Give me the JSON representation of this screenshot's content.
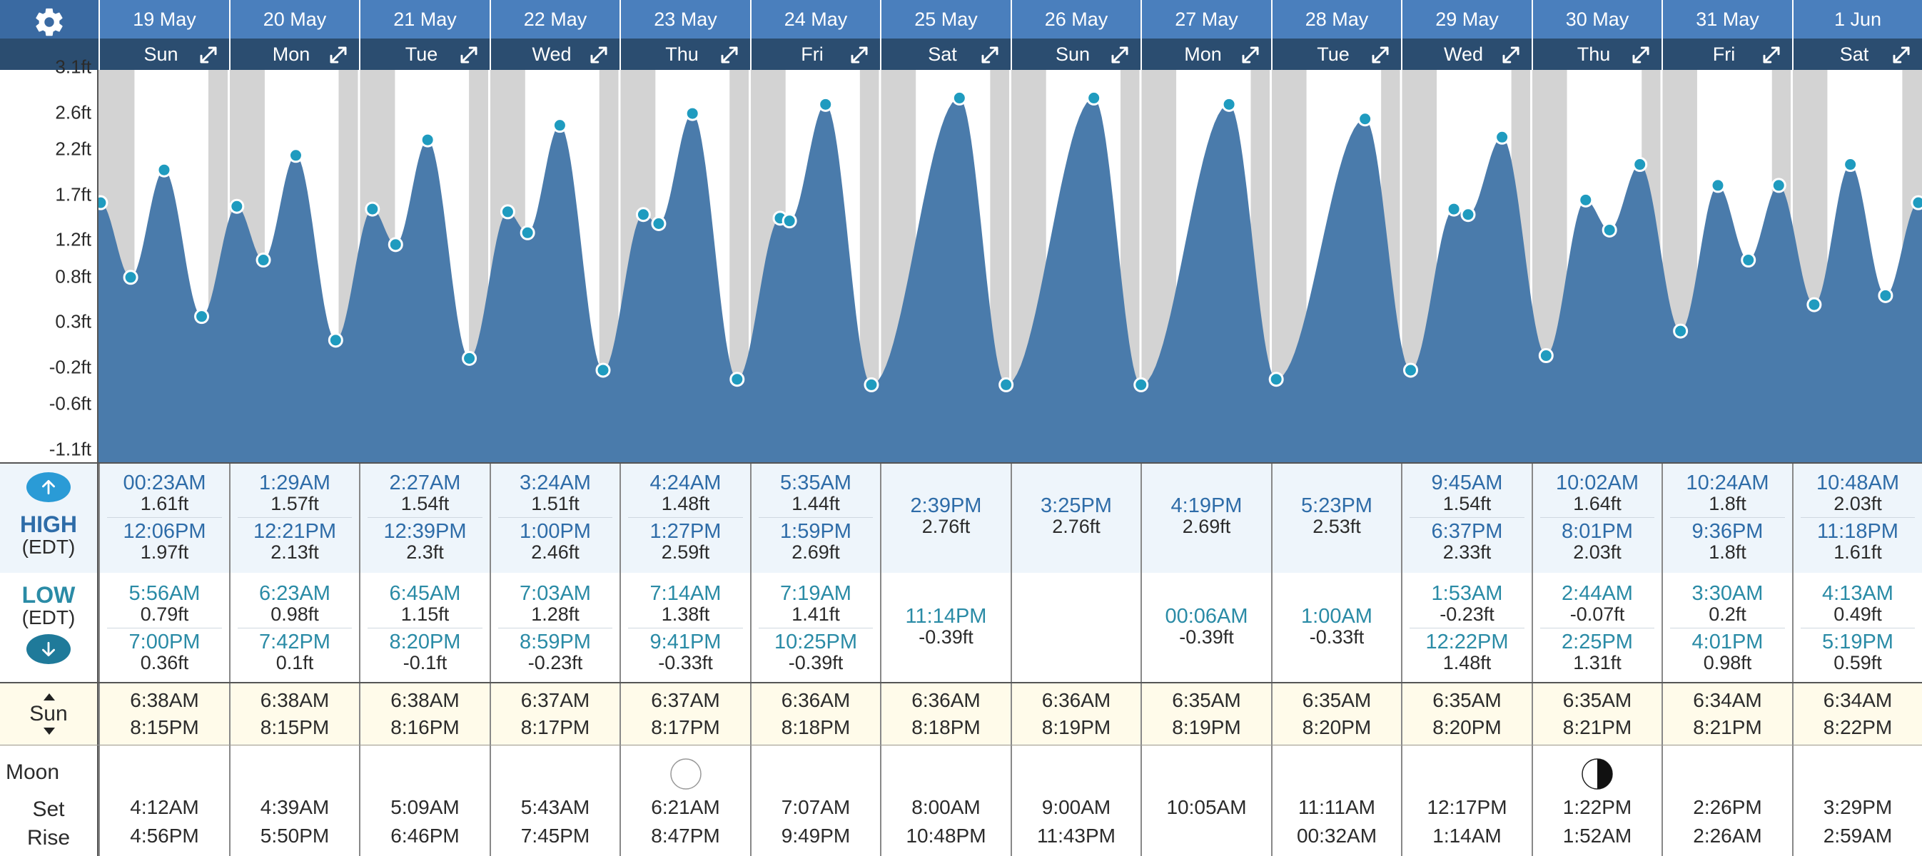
{
  "header": {
    "settings_icon": "gear-icon",
    "expand_icon": "expand-icon",
    "days": [
      {
        "date": "19 May",
        "dow": "Sun"
      },
      {
        "date": "20 May",
        "dow": "Mon"
      },
      {
        "date": "21 May",
        "dow": "Tue"
      },
      {
        "date": "22 May",
        "dow": "Wed"
      },
      {
        "date": "23 May",
        "dow": "Thu"
      },
      {
        "date": "24 May",
        "dow": "Fri"
      },
      {
        "date": "25 May",
        "dow": "Sat"
      },
      {
        "date": "26 May",
        "dow": "Sun"
      },
      {
        "date": "27 May",
        "dow": "Mon"
      },
      {
        "date": "28 May",
        "dow": "Tue"
      },
      {
        "date": "29 May",
        "dow": "Wed"
      },
      {
        "date": "30 May",
        "dow": "Thu"
      },
      {
        "date": "31 May",
        "dow": "Fri"
      },
      {
        "date": "1 Jun",
        "dow": "Sat"
      }
    ]
  },
  "chart_data": {
    "type": "area",
    "title": "",
    "xlabel": "",
    "ylabel": "",
    "y_tick_labels": [
      "3.1ft",
      "2.6ft",
      "2.2ft",
      "1.7ft",
      "1.2ft",
      "0.8ft",
      "0.3ft",
      "-0.2ft",
      "-0.6ft",
      "-1.1ft"
    ],
    "ylim": [
      -1.1,
      3.1
    ],
    "x_unit": "days since 19 May 00:00",
    "x_range": [
      0,
      14
    ],
    "series": [
      {
        "values_note": "tide extremes",
        "points": [
          [
            0.016,
            1.61
          ],
          [
            0.247,
            0.79
          ],
          [
            0.504,
            1.97
          ],
          [
            0.792,
            0.36
          ],
          [
            1.062,
            1.57
          ],
          [
            1.266,
            0.98
          ],
          [
            1.515,
            2.13
          ],
          [
            1.821,
            0.1
          ],
          [
            2.103,
            1.54
          ],
          [
            2.281,
            1.15
          ],
          [
            2.527,
            2.3
          ],
          [
            2.847,
            -0.1
          ],
          [
            3.142,
            1.51
          ],
          [
            3.294,
            1.28
          ],
          [
            3.542,
            2.46
          ],
          [
            3.874,
            -0.23
          ],
          [
            4.183,
            1.48
          ],
          [
            4.301,
            1.38
          ],
          [
            4.56,
            2.59
          ],
          [
            4.903,
            -0.33
          ],
          [
            5.233,
            1.44
          ],
          [
            5.305,
            1.41
          ],
          [
            5.582,
            2.69
          ],
          [
            5.934,
            -0.39
          ],
          [
            6.61,
            2.76
          ],
          [
            6.968,
            -0.39
          ],
          [
            7.642,
            2.76
          ],
          [
            8.004,
            -0.39
          ],
          [
            8.68,
            2.69
          ],
          [
            9.042,
            -0.33
          ],
          [
            9.724,
            2.53
          ],
          [
            10.074,
            -0.23
          ],
          [
            10.406,
            1.54
          ],
          [
            10.515,
            1.48
          ],
          [
            10.776,
            2.33
          ],
          [
            11.114,
            -0.07
          ],
          [
            11.418,
            1.64
          ],
          [
            11.601,
            1.31
          ],
          [
            11.834,
            2.03
          ],
          [
            12.146,
            0.2
          ],
          [
            12.433,
            1.8
          ],
          [
            12.667,
            0.98
          ],
          [
            12.9,
            1.8
          ],
          [
            13.172,
            0.49
          ],
          [
            13.45,
            2.03
          ],
          [
            13.72,
            0.59
          ],
          [
            13.972,
            1.61
          ]
        ]
      }
    ],
    "colors": {
      "fill": "#4a7bab",
      "marker": "#1f9bbf",
      "night": "#d3d3d3"
    },
    "grid": false
  },
  "table": {
    "high_label": "HIGH",
    "high_tz": "(EDT)",
    "low_label": "LOW",
    "low_tz": "(EDT)",
    "sun_label": "Sun",
    "moon_label": "Moon",
    "set_label": "Set",
    "rise_label": "Rise",
    "high": [
      [
        {
          "t": "00:23AM",
          "h": "1.61ft"
        },
        {
          "t": "12:06PM",
          "h": "1.97ft"
        }
      ],
      [
        {
          "t": "1:29AM",
          "h": "1.57ft"
        },
        {
          "t": "12:21PM",
          "h": "2.13ft"
        }
      ],
      [
        {
          "t": "2:27AM",
          "h": "1.54ft"
        },
        {
          "t": "12:39PM",
          "h": "2.3ft"
        }
      ],
      [
        {
          "t": "3:24AM",
          "h": "1.51ft"
        },
        {
          "t": "1:00PM",
          "h": "2.46ft"
        }
      ],
      [
        {
          "t": "4:24AM",
          "h": "1.48ft"
        },
        {
          "t": "1:27PM",
          "h": "2.59ft"
        }
      ],
      [
        {
          "t": "5:35AM",
          "h": "1.44ft"
        },
        {
          "t": "1:59PM",
          "h": "2.69ft"
        }
      ],
      [
        {
          "t": "2:39PM",
          "h": "2.76ft"
        }
      ],
      [
        {
          "t": "3:25PM",
          "h": "2.76ft"
        }
      ],
      [
        {
          "t": "4:19PM",
          "h": "2.69ft"
        }
      ],
      [
        {
          "t": "5:23PM",
          "h": "2.53ft"
        }
      ],
      [
        {
          "t": "9:45AM",
          "h": "1.54ft"
        },
        {
          "t": "6:37PM",
          "h": "2.33ft"
        }
      ],
      [
        {
          "t": "10:02AM",
          "h": "1.64ft"
        },
        {
          "t": "8:01PM",
          "h": "2.03ft"
        }
      ],
      [
        {
          "t": "10:24AM",
          "h": "1.8ft"
        },
        {
          "t": "9:36PM",
          "h": "1.8ft"
        }
      ],
      [
        {
          "t": "10:48AM",
          "h": "2.03ft"
        },
        {
          "t": "11:18PM",
          "h": "1.61ft"
        }
      ]
    ],
    "low": [
      [
        {
          "t": "5:56AM",
          "h": "0.79ft"
        },
        {
          "t": "7:00PM",
          "h": "0.36ft"
        }
      ],
      [
        {
          "t": "6:23AM",
          "h": "0.98ft"
        },
        {
          "t": "7:42PM",
          "h": "0.1ft"
        }
      ],
      [
        {
          "t": "6:45AM",
          "h": "1.15ft"
        },
        {
          "t": "8:20PM",
          "h": "-0.1ft"
        }
      ],
      [
        {
          "t": "7:03AM",
          "h": "1.28ft"
        },
        {
          "t": "8:59PM",
          "h": "-0.23ft"
        }
      ],
      [
        {
          "t": "7:14AM",
          "h": "1.38ft"
        },
        {
          "t": "9:41PM",
          "h": "-0.33ft"
        }
      ],
      [
        {
          "t": "7:19AM",
          "h": "1.41ft"
        },
        {
          "t": "10:25PM",
          "h": "-0.39ft"
        }
      ],
      [
        {
          "t": "11:14PM",
          "h": "-0.39ft"
        }
      ],
      [],
      [
        {
          "t": "00:06AM",
          "h": "-0.39ft"
        }
      ],
      [
        {
          "t": "1:00AM",
          "h": "-0.33ft"
        }
      ],
      [
        {
          "t": "1:53AM",
          "h": "-0.23ft"
        },
        {
          "t": "12:22PM",
          "h": "1.48ft"
        }
      ],
      [
        {
          "t": "2:44AM",
          "h": "-0.07ft"
        },
        {
          "t": "2:25PM",
          "h": "1.31ft"
        }
      ],
      [
        {
          "t": "3:30AM",
          "h": "0.2ft"
        },
        {
          "t": "4:01PM",
          "h": "0.98ft"
        }
      ],
      [
        {
          "t": "4:13AM",
          "h": "0.49ft"
        },
        {
          "t": "5:19PM",
          "h": "0.59ft"
        }
      ]
    ],
    "sun": [
      {
        "rise": "6:38AM",
        "set": "8:15PM"
      },
      {
        "rise": "6:38AM",
        "set": "8:15PM"
      },
      {
        "rise": "6:38AM",
        "set": "8:16PM"
      },
      {
        "rise": "6:37AM",
        "set": "8:17PM"
      },
      {
        "rise": "6:37AM",
        "set": "8:17PM"
      },
      {
        "rise": "6:36AM",
        "set": "8:18PM"
      },
      {
        "rise": "6:36AM",
        "set": "8:18PM"
      },
      {
        "rise": "6:36AM",
        "set": "8:19PM"
      },
      {
        "rise": "6:35AM",
        "set": "8:19PM"
      },
      {
        "rise": "6:35AM",
        "set": "8:20PM"
      },
      {
        "rise": "6:35AM",
        "set": "8:20PM"
      },
      {
        "rise": "6:35AM",
        "set": "8:21PM"
      },
      {
        "rise": "6:34AM",
        "set": "8:21PM"
      },
      {
        "rise": "6:34AM",
        "set": "8:22PM"
      }
    ],
    "moon": [
      {
        "set": "4:12AM",
        "rise": "4:56PM",
        "phase": ""
      },
      {
        "set": "4:39AM",
        "rise": "5:50PM",
        "phase": ""
      },
      {
        "set": "5:09AM",
        "rise": "6:46PM",
        "phase": ""
      },
      {
        "set": "5:43AM",
        "rise": "7:45PM",
        "phase": ""
      },
      {
        "set": "6:21AM",
        "rise": "8:47PM",
        "phase": "full-moon-icon"
      },
      {
        "set": "7:07AM",
        "rise": "9:49PM",
        "phase": ""
      },
      {
        "set": "8:00AM",
        "rise": "10:48PM",
        "phase": ""
      },
      {
        "set": "9:00AM",
        "rise": "11:43PM",
        "phase": ""
      },
      {
        "set": "10:05AM",
        "rise": "",
        "phase": ""
      },
      {
        "set": "11:11AM",
        "rise": "00:32AM",
        "phase": ""
      },
      {
        "set": "12:17PM",
        "rise": "1:14AM",
        "phase": ""
      },
      {
        "set": "1:22PM",
        "rise": "1:52AM",
        "phase": "last-quarter-moon-icon"
      },
      {
        "set": "2:26PM",
        "rise": "2:26AM",
        "phase": ""
      },
      {
        "set": "3:29PM",
        "rise": "2:59AM",
        "phase": ""
      }
    ]
  }
}
